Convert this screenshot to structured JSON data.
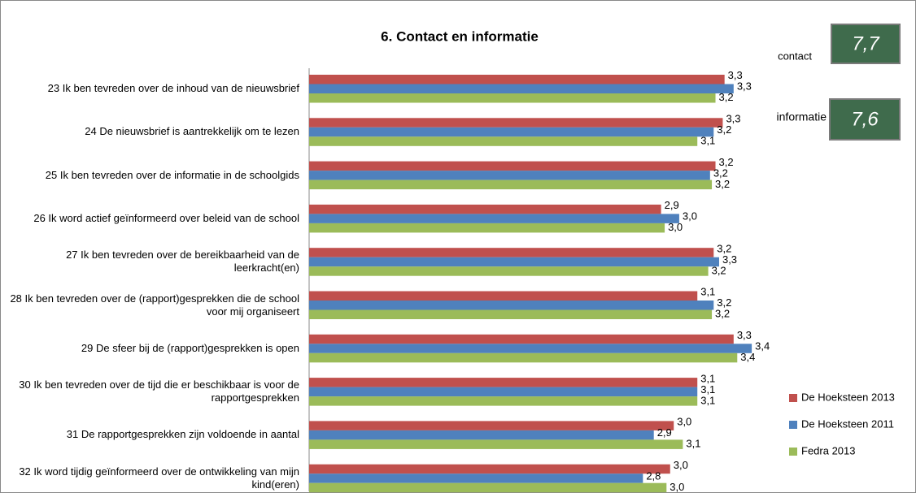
{
  "chart_data": {
    "type": "hbar",
    "title": "6. Contact en informatie",
    "categories": [
      "23 Ik ben tevreden over de inhoud van de nieuwsbrief",
      "24 De nieuwsbrief is aantrekkelijk om te lezen",
      "25 Ik ben tevreden over de informatie in de schoolgids",
      "26 Ik word actief geïnformeerd over beleid van de school",
      "27 Ik ben tevreden over de bereikbaarheid van de leerkracht(en)",
      "28 Ik ben tevreden over de (rapport)gesprekken die de school voor mij organiseert",
      "29 De sfeer bij de (rapport)gesprekken is open",
      "30 Ik ben tevreden over de tijd die er beschikbaar is voor de rapportgesprekken",
      "31 De rapportgesprekken zijn voldoende in aantal",
      "32 Ik word tijdig geïnformeerd over de ontwikkeling van mijn kind(eren)"
    ],
    "series": [
      {
        "name": "De Hoeksteen 2013",
        "color": "#c0504d",
        "values": [
          3.29,
          3.28,
          3.24,
          2.94,
          3.23,
          3.14,
          3.34,
          3.14,
          3.01,
          2.99
        ],
        "value_labels": [
          "3,3",
          "3,3",
          "3,2",
          "2,9",
          "3,2",
          "3,1",
          "3,3",
          "3,1",
          "3,0",
          "3,0"
        ]
      },
      {
        "name": "De Hoeksteen 2011",
        "color": "#4f81bd",
        "values": [
          3.34,
          3.23,
          3.21,
          3.04,
          3.26,
          3.23,
          3.44,
          3.14,
          2.9,
          2.84
        ],
        "value_labels": [
          "3,3",
          "3,2",
          "3,2",
          "3,0",
          "3,3",
          "3,2",
          "3,4",
          "3,1",
          "2,9",
          "2,8"
        ]
      },
      {
        "name": "Fedra 2013",
        "color": "#9bbb59",
        "values": [
          3.24,
          3.14,
          3.22,
          2.96,
          3.2,
          3.22,
          3.36,
          3.14,
          3.06,
          2.97
        ],
        "value_labels": [
          "3,2",
          "3,1",
          "3,2",
          "3,0",
          "3,2",
          "3,2",
          "3,4",
          "3,1",
          "3,1",
          "3,0"
        ]
      }
    ],
    "xlim": [
      1,
      4
    ],
    "legend": "right-bottom",
    "annotations": [
      {
        "label": "contact",
        "score": "7,7"
      },
      {
        "label": "informatie",
        "score": "7,6"
      }
    ]
  }
}
